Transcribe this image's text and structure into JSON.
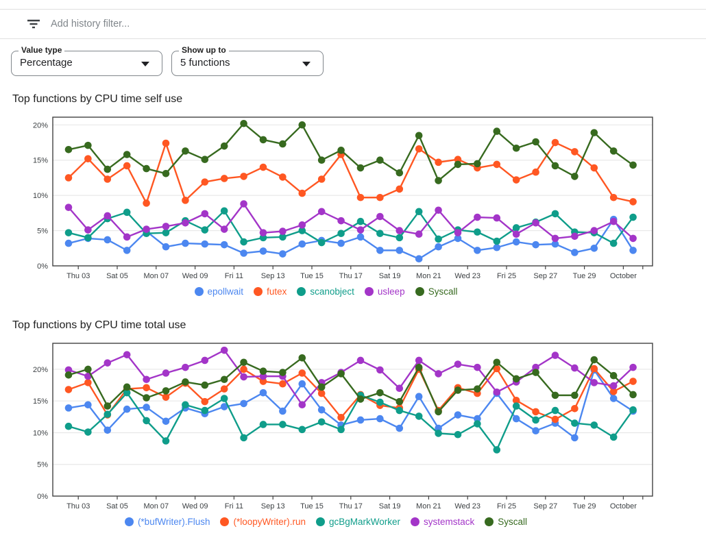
{
  "filter_bar": {
    "icon": "filter-list-icon",
    "placeholder": "Add history filter..."
  },
  "controls": {
    "value_type": {
      "label": "Value type",
      "value": "Percentage"
    },
    "show_up_to": {
      "label": "Show up to",
      "value": "5 functions"
    }
  },
  "axis": {
    "y_tick_labels": [
      "0%",
      "5%",
      "10%",
      "15%",
      "20%"
    ],
    "x_labels": [
      "Thu 03",
      "Sat 05",
      "Mon 07",
      "Wed 09",
      "Fri 11",
      "Sep 13",
      "Tue 15",
      "Thu 17",
      "Sat 19",
      "Mon 21",
      "Wed 23",
      "Fri 25",
      "Sep 27",
      "Tue 29",
      "October"
    ]
  },
  "chart_data": [
    {
      "type": "line",
      "title": "Top functions by CPU time self use",
      "x_labels": [
        "Thu 03",
        "Sat 05",
        "Mon 07",
        "Wed 09",
        "Fri 11",
        "Sep 13",
        "Tue 15",
        "Thu 17",
        "Sat 19",
        "Mon 21",
        "Wed 23",
        "Fri 25",
        "Sep 27",
        "Tue 29",
        "October"
      ],
      "yticks": [
        0,
        5,
        10,
        15,
        20
      ],
      "ylim": [
        0,
        21.1
      ],
      "grid": true,
      "legend_position": "bottom",
      "series": [
        {
          "name": "epollwait",
          "color": "#4c87f0",
          "values": [
            3.2,
            3.9,
            3.7,
            2.2,
            4.9,
            2.7,
            3.2,
            3.1,
            3.0,
            1.8,
            2.1,
            1.7,
            3.1,
            3.6,
            3.2,
            4.1,
            2.2,
            2.2,
            1.0,
            2.7,
            3.9,
            2.2,
            2.6,
            3.4,
            3.0,
            3.1,
            1.9,
            2.5,
            6.6,
            2.2
          ]
        },
        {
          "name": "futex",
          "color": "#ff5722",
          "values": [
            12.5,
            15.2,
            12.3,
            14.2,
            8.9,
            17.4,
            9.3,
            11.9,
            12.4,
            12.7,
            14.0,
            12.6,
            10.3,
            12.3,
            15.8,
            9.7,
            9.7,
            10.9,
            16.6,
            14.7,
            15.1,
            13.9,
            14.4,
            12.2,
            13.3,
            17.5,
            16.2,
            13.9,
            9.7,
            9.1
          ]
        },
        {
          "name": "scanobject",
          "color": "#0f9d8a",
          "values": [
            4.7,
            4.0,
            6.7,
            7.6,
            4.6,
            4.7,
            6.4,
            5.1,
            7.8,
            3.4,
            4.0,
            4.1,
            5.0,
            3.3,
            4.6,
            6.3,
            4.6,
            4.0,
            7.7,
            3.8,
            5.1,
            4.8,
            3.5,
            5.4,
            6.2,
            7.4,
            4.8,
            4.7,
            3.2,
            6.9
          ]
        },
        {
          "name": "usleep",
          "color": "#a335c8",
          "values": [
            8.3,
            5.1,
            7.1,
            4.1,
            5.2,
            5.6,
            6.1,
            7.4,
            5.2,
            8.8,
            4.7,
            4.9,
            5.8,
            7.7,
            6.4,
            5.1,
            7.0,
            5.0,
            4.5,
            7.9,
            4.7,
            6.9,
            6.8,
            4.5,
            6.1,
            3.9,
            4.2,
            5.0,
            6.3,
            3.9
          ]
        },
        {
          "name": "Syscall",
          "color": "#376a1f",
          "values": [
            16.5,
            17.1,
            13.7,
            15.8,
            13.8,
            13.1,
            16.3,
            15.1,
            17.0,
            20.2,
            17.9,
            17.3,
            20.0,
            15.0,
            16.4,
            13.9,
            15.0,
            13.2,
            18.5,
            12.1,
            14.4,
            14.5,
            19.1,
            16.7,
            17.6,
            14.2,
            12.7,
            18.9,
            16.3,
            14.3
          ]
        }
      ]
    },
    {
      "type": "line",
      "title": "Top functions by CPU time total use",
      "x_labels": [
        "Thu 03",
        "Sat 05",
        "Mon 07",
        "Wed 09",
        "Fri 11",
        "Sep 13",
        "Tue 15",
        "Thu 17",
        "Sat 19",
        "Mon 21",
        "Wed 23",
        "Fri 25",
        "Sep 27",
        "Tue 29",
        "October"
      ],
      "yticks": [
        0,
        5,
        10,
        15,
        20
      ],
      "ylim": [
        0,
        24.1
      ],
      "grid": true,
      "legend_position": "bottom",
      "series": [
        {
          "name": "(*bufWriter).Flush",
          "color": "#4c87f0",
          "values": [
            13.9,
            14.4,
            10.4,
            13.7,
            14.0,
            11.8,
            13.9,
            13.0,
            14.1,
            14.6,
            16.3,
            13.4,
            17.7,
            13.6,
            11.2,
            12.0,
            12.2,
            10.7,
            15.7,
            10.7,
            12.8,
            12.2,
            16.2,
            12.2,
            10.3,
            11.5,
            9.2,
            19.9,
            15.4,
            13.4
          ]
        },
        {
          "name": "(*loopyWriter).run",
          "color": "#ff5722",
          "values": [
            16.8,
            17.9,
            12.8,
            16.9,
            17.1,
            15.6,
            17.8,
            14.9,
            16.9,
            20.0,
            18.1,
            17.7,
            19.4,
            16.2,
            12.4,
            16.0,
            14.3,
            13.9,
            20.0,
            13.5,
            17.1,
            16.2,
            20.1,
            15.1,
            13.3,
            12.1,
            13.8,
            20.1,
            16.5,
            18.1
          ]
        },
        {
          "name": "gcBgMarkWorker",
          "color": "#0f9d8a",
          "values": [
            11.0,
            10.1,
            12.9,
            16.3,
            11.9,
            8.7,
            14.4,
            13.5,
            15.4,
            9.2,
            11.3,
            11.3,
            10.5,
            11.7,
            10.5,
            15.9,
            14.8,
            13.5,
            12.6,
            9.9,
            9.7,
            11.4,
            7.3,
            14.2,
            12.0,
            13.5,
            11.5,
            11.2,
            9.3,
            13.6
          ]
        },
        {
          "name": "systemstack",
          "color": "#a335c8",
          "values": [
            19.9,
            18.9,
            21.0,
            22.3,
            18.4,
            19.4,
            20.3,
            21.4,
            23.0,
            18.8,
            18.9,
            18.9,
            14.4,
            17.9,
            19.5,
            21.4,
            19.9,
            17.0,
            21.4,
            19.3,
            20.8,
            20.3,
            16.4,
            18.0,
            20.3,
            22.2,
            20.2,
            17.9,
            17.4,
            20.3
          ]
        },
        {
          "name": "Syscall",
          "color": "#376a1f",
          "values": [
            19.1,
            20.0,
            14.2,
            17.2,
            15.5,
            16.6,
            18.0,
            17.5,
            18.4,
            21.1,
            19.7,
            19.5,
            21.8,
            17.2,
            19.3,
            15.3,
            16.3,
            14.9,
            20.3,
            13.3,
            16.7,
            16.9,
            21.1,
            18.5,
            19.5,
            15.9,
            15.9,
            21.5,
            19.0,
            16.0
          ]
        }
      ]
    }
  ],
  "style_colors": {
    "grid_line": "#e8e8e8",
    "plot_border": "#424242",
    "axis_text": "#3c4043",
    "divider": "#e0e0e0",
    "placeholder_text": "#80868b"
  }
}
